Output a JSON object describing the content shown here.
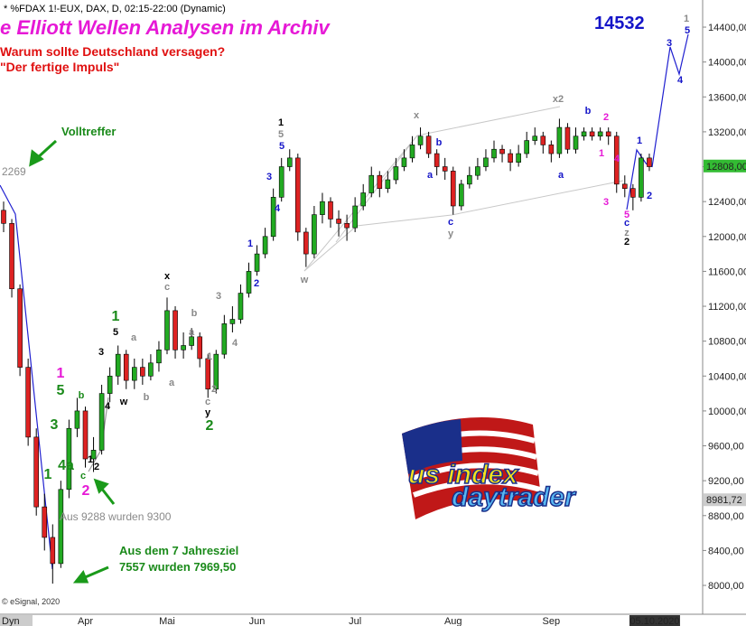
{
  "header": {
    "symbol": "* %FDAX 1!-EUX, DAX, D, 02:15-22:00 (Dynamic)"
  },
  "footer": {
    "copyright": "© eSignal, 2020",
    "corner": "Dyn",
    "logo_top": "us index",
    "logo_bottom": "daytrader"
  },
  "chart_data": {
    "type": "candlestick",
    "title": "e Elliott Wellen Analysen im Archiv",
    "subtitle": "Warum sollte Deutschland versagen?",
    "subtitle2": "\"Der fertige Impuls\"",
    "target": "14532",
    "annotations": [
      "Volltreffer",
      "2269",
      "Aus 9288 wurden 9300",
      "Aus dem 7 Jahresziel",
      "7557 wurden 7969,50"
    ],
    "wave_labels": [
      "1",
      "5",
      "b",
      "3",
      "4a",
      "c",
      "1",
      "2",
      "1",
      "2",
      "3",
      "4",
      "w",
      "1",
      "5",
      "a",
      "b",
      "x",
      "c",
      "b",
      "a",
      "a",
      "1",
      "2",
      "c",
      "y",
      "2",
      "3",
      "4",
      "1",
      "2",
      "3",
      "4",
      "1",
      "5",
      "5",
      "w",
      "x",
      "b",
      "a",
      "c",
      "y",
      "x2",
      "b",
      "2",
      "1",
      "4",
      "a",
      "3",
      "5",
      "c",
      "z",
      "2",
      "1",
      "2",
      "3",
      "1",
      "5",
      "4"
    ],
    "up_color": "#22aa22",
    "down_color": "#dd2222",
    "ylim": [
      7669,
      14711
    ],
    "yticks": [
      {
        "value": 8000,
        "label": "8000,00"
      },
      {
        "value": 8400,
        "label": "8400,00"
      },
      {
        "value": 8800,
        "label": "8800,00"
      },
      {
        "value": 9200,
        "label": "9200,00"
      },
      {
        "value": 9600,
        "label": "9600,00"
      },
      {
        "value": 10000,
        "label": "10000,00"
      },
      {
        "value": 10400,
        "label": "10400,00"
      },
      {
        "value": 10800,
        "label": "10800,00"
      },
      {
        "value": 11200,
        "label": "11200,00"
      },
      {
        "value": 11600,
        "label": "11600,00"
      },
      {
        "value": 12000,
        "label": "12000,00"
      },
      {
        "value": 12400,
        "label": "12400,00"
      },
      {
        "value": 12800,
        "label": "12800,00"
      },
      {
        "value": 13200,
        "label": "13200,00"
      },
      {
        "value": 13600,
        "label": "13600,00"
      },
      {
        "value": 14000,
        "label": "14000,00"
      },
      {
        "value": 14400,
        "label": "14400,00"
      }
    ],
    "price_markers": [
      {
        "value": 12808,
        "label": "12808,00",
        "color": "#33bb33"
      },
      {
        "value": 8981.72,
        "label": "8981,72",
        "color": "#cccccc"
      }
    ],
    "categories": [
      null,
      null,
      null,
      null,
      null,
      null,
      null,
      null,
      null,
      null,
      "Apr",
      null,
      null,
      null,
      null,
      null,
      null,
      null,
      null,
      null,
      "Mai",
      null,
      null,
      null,
      null,
      null,
      null,
      null,
      null,
      null,
      null,
      "Jun",
      null,
      null,
      null,
      null,
      null,
      null,
      null,
      null,
      null,
      null,
      null,
      "Jul",
      null,
      null,
      null,
      null,
      null,
      null,
      null,
      null,
      null,
      null,
      null,
      "Aug",
      null,
      null,
      null,
      null,
      null,
      null,
      null,
      null,
      null,
      null,
      null,
      "Sep",
      null,
      null,
      null,
      null,
      null,
      null,
      null,
      null,
      null,
      null,
      null,
      "05.10.2020"
    ],
    "open": [
      12300,
      12150,
      11400,
      10500,
      9700,
      8900,
      8550,
      8250,
      9100,
      9800,
      10000,
      9450,
      9550,
      10200,
      10400,
      10650,
      10350,
      10500,
      10400,
      10550,
      10700,
      11150,
      10700,
      10750,
      10850,
      10600,
      10250,
      10650,
      11000,
      11050,
      11350,
      11600,
      11800,
      12000,
      12450,
      12800,
      12900,
      12050,
      11800,
      12250,
      12400,
      12200,
      12150,
      12100,
      12350,
      12500,
      12700,
      12550,
      12650,
      12800,
      12900,
      13050,
      13150,
      12950,
      12800,
      12750,
      12350,
      12600,
      12700,
      12800,
      12900,
      13000,
      12950,
      12850,
      12950,
      13100,
      13150,
      13050,
      12950,
      13250,
      13000,
      13150,
      13200,
      13150,
      13200,
      13150,
      12600,
      12550,
      12450,
      12900
    ],
    "high": [
      12400,
      12200,
      11450,
      10600,
      9800,
      9050,
      8700,
      9200,
      9900,
      10150,
      10050,
      9700,
      10300,
      10500,
      10750,
      10700,
      10600,
      10600,
      10650,
      10800,
      11300,
      11200,
      10900,
      10950,
      10900,
      10650,
      10700,
      11100,
      11200,
      11450,
      11700,
      11900,
      12100,
      12550,
      12900,
      13000,
      12950,
      12100,
      12350,
      12500,
      12450,
      12300,
      12250,
      12450,
      12600,
      12800,
      12750,
      12750,
      12900,
      13000,
      13150,
      13250,
      13200,
      13000,
      12900,
      12800,
      12650,
      12800,
      12900,
      13000,
      13100,
      13050,
      13000,
      13050,
      13200,
      13250,
      13200,
      13100,
      13350,
      13300,
      13250,
      13250,
      13250,
      13250,
      13250,
      13200,
      12700,
      12600,
      12950,
      12950
    ],
    "low": [
      12050,
      11300,
      10400,
      9600,
      8800,
      8400,
      8020,
      8200,
      9000,
      9700,
      9350,
      9300,
      9500,
      10100,
      10300,
      10250,
      10250,
      10300,
      10350,
      10450,
      10650,
      10600,
      10600,
      10700,
      10500,
      10150,
      10200,
      10600,
      10900,
      11000,
      11300,
      11550,
      11750,
      11950,
      12400,
      12750,
      11950,
      11650,
      11750,
      12150,
      12100,
      12000,
      11950,
      12050,
      12300,
      12450,
      12450,
      12500,
      12600,
      12750,
      12850,
      13000,
      12900,
      12700,
      12650,
      12250,
      12300,
      12550,
      12650,
      12750,
      12850,
      12850,
      12750,
      12800,
      12900,
      13050,
      12950,
      12850,
      12900,
      12950,
      12950,
      13100,
      13100,
      13100,
      13050,
      12500,
      12450,
      12300,
      12400,
      12750
    ],
    "close": [
      12150,
      11400,
      10500,
      9700,
      8900,
      8550,
      8250,
      9100,
      9800,
      10000,
      9450,
      9550,
      10200,
      10400,
      10650,
      10350,
      10500,
      10400,
      10550,
      10700,
      11150,
      10700,
      10750,
      10850,
      10600,
      10250,
      10650,
      11000,
      11050,
      11350,
      11600,
      11800,
      12000,
      12450,
      12800,
      12900,
      12050,
      11800,
      12250,
      12400,
      12200,
      12150,
      12100,
      12350,
      12500,
      12700,
      12550,
      12650,
      12800,
      12900,
      13050,
      13150,
      12950,
      12800,
      12750,
      12350,
      12600,
      12700,
      12800,
      12900,
      13000,
      12950,
      12850,
      12950,
      13100,
      13150,
      13050,
      12950,
      13250,
      13000,
      13150,
      13200,
      13150,
      13200,
      13150,
      12600,
      12550,
      12450,
      12900,
      12800
    ]
  }
}
